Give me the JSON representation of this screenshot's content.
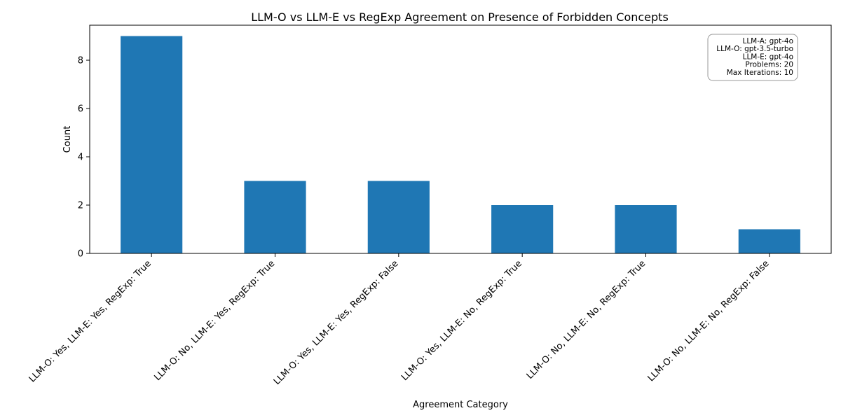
{
  "chart_data": {
    "type": "bar",
    "title": "LLM-O vs LLM-E vs RegExp Agreement on Presence of Forbidden Concepts",
    "xlabel": "Agreement Category",
    "ylabel": "Count",
    "categories": [
      "LLM-O: Yes, LLM-E: Yes, RegExp: True",
      "LLM-O: No, LLM-E: Yes, RegExp: True",
      "LLM-O: Yes, LLM-E: Yes, RegExp: False",
      "LLM-O: Yes, LLM-E: No, RegExp: True",
      "LLM-O: No, LLM-E: No, RegExp: True",
      "LLM-O: No, LLM-E: No, RegExp: False"
    ],
    "values": [
      9,
      3,
      3,
      2,
      2,
      1
    ],
    "ylim": [
      0,
      9.45
    ],
    "yticks": [
      0,
      2,
      4,
      6,
      8
    ],
    "bar_color": "#1f77b4",
    "grid": false,
    "legend": "none",
    "annotation_position": "top-right",
    "annotation_lines": [
      "LLM-A: gpt-4o",
      "LLM-O: gpt-3.5-turbo",
      "LLM-E: gpt-4o",
      "Problems: 20",
      "Max Iterations: 10"
    ]
  }
}
